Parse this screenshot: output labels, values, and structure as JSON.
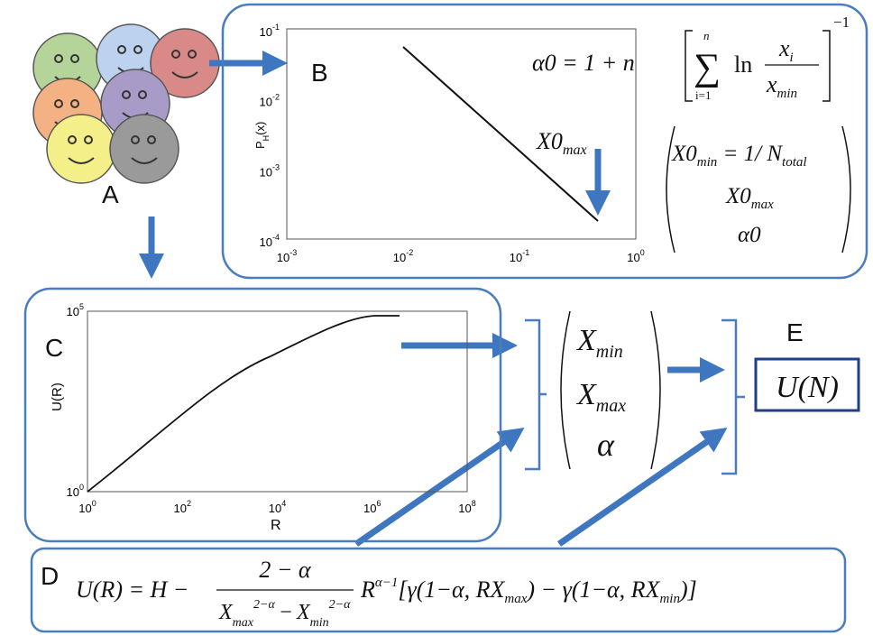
{
  "labels": {
    "a": "A",
    "b": "B",
    "c": "C",
    "d": "D",
    "e": "E"
  },
  "panel_b": {
    "y_axis_label": {
      "main": "P",
      "sub": "H",
      "rest": "(x)"
    },
    "xticks": [
      {
        "base": "10",
        "exp": "-3"
      },
      {
        "base": "10",
        "exp": "-2"
      },
      {
        "base": "10",
        "exp": "-1"
      },
      {
        "base": "10",
        "exp": "0"
      }
    ],
    "yticks": [
      {
        "base": "10",
        "exp": "-1"
      },
      {
        "base": "10",
        "exp": "-2"
      },
      {
        "base": "10",
        "exp": "-3"
      },
      {
        "base": "10",
        "exp": "-4"
      }
    ],
    "annotation": {
      "main": "X0",
      "sub": "max"
    }
  },
  "alpha_formula": {
    "lhs": "α0 = 1 + n",
    "upper": "n",
    "sum": "∑",
    "lower": "i=1",
    "ln": "ln",
    "num": "x",
    "num_sub": "i",
    "den": "x",
    "den_sub": "min",
    "power": "−1"
  },
  "initial_vector": [
    {
      "main": "X0",
      "sub": "min",
      "rest": " = 1/ N",
      "rest_sub": "total"
    },
    {
      "main": "X0",
      "sub": "max"
    },
    {
      "main": "α0"
    }
  ],
  "panel_c": {
    "x_axis_label": "R",
    "y_axis_label": "U(R)",
    "xticks": [
      {
        "base": "10",
        "exp": "0"
      },
      {
        "base": "10",
        "exp": "2"
      },
      {
        "base": "10",
        "exp": "4"
      },
      {
        "base": "10",
        "exp": "6"
      },
      {
        "base": "10",
        "exp": "8"
      }
    ],
    "yticks": [
      {
        "base": "10",
        "exp": "5"
      },
      {
        "base": "10",
        "exp": "0"
      }
    ]
  },
  "parameter_vector": [
    {
      "main": "X",
      "sub": "min"
    },
    {
      "main": "X",
      "sub": "max"
    },
    {
      "main": "α"
    }
  ],
  "output": "U(N)",
  "utility_formula": {
    "lhs": "U(R) = H −",
    "num": "2 − α",
    "x1": "X",
    "x1_sub": "max",
    "x1_sup": "2−α",
    "minus": "−",
    "x2": "X",
    "x2_sub": "min",
    "x2_sup": "2−α",
    "r": "R",
    "r_sup": "α−1",
    "p1": "[γ(1−α, RX",
    "p1_sub": "max",
    "p2": ") − γ(1−α, RX",
    "p2_sub": "min",
    "p3": ")]"
  }
}
